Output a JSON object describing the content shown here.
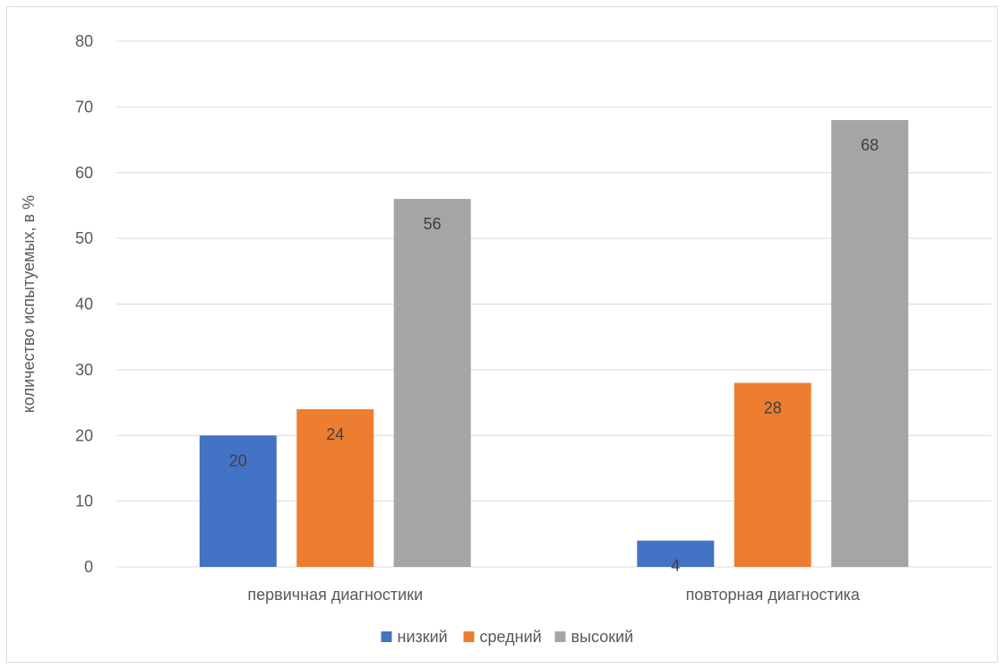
{
  "chart_data": {
    "type": "bar",
    "categories": [
      "первичная диагностики",
      "повторная диагностика"
    ],
    "series": [
      {
        "name": "низкий",
        "values": [
          20,
          4
        ],
        "color": "#4472c4"
      },
      {
        "name": "средний",
        "values": [
          24,
          28
        ],
        "color": "#ed7d31"
      },
      {
        "name": "высокий",
        "values": [
          56,
          68
        ],
        "color": "#a5a5a5"
      }
    ],
    "title": "",
    "xlabel": "",
    "ylabel": "количество испытуемых, в %",
    "ylim": [
      0,
      80
    ],
    "yticks": [
      0,
      10,
      20,
      30,
      40,
      50,
      60,
      70,
      80
    ],
    "grid": true,
    "legend": "bottom",
    "data_labels": true,
    "gridline_color": "#d9d9d9"
  }
}
